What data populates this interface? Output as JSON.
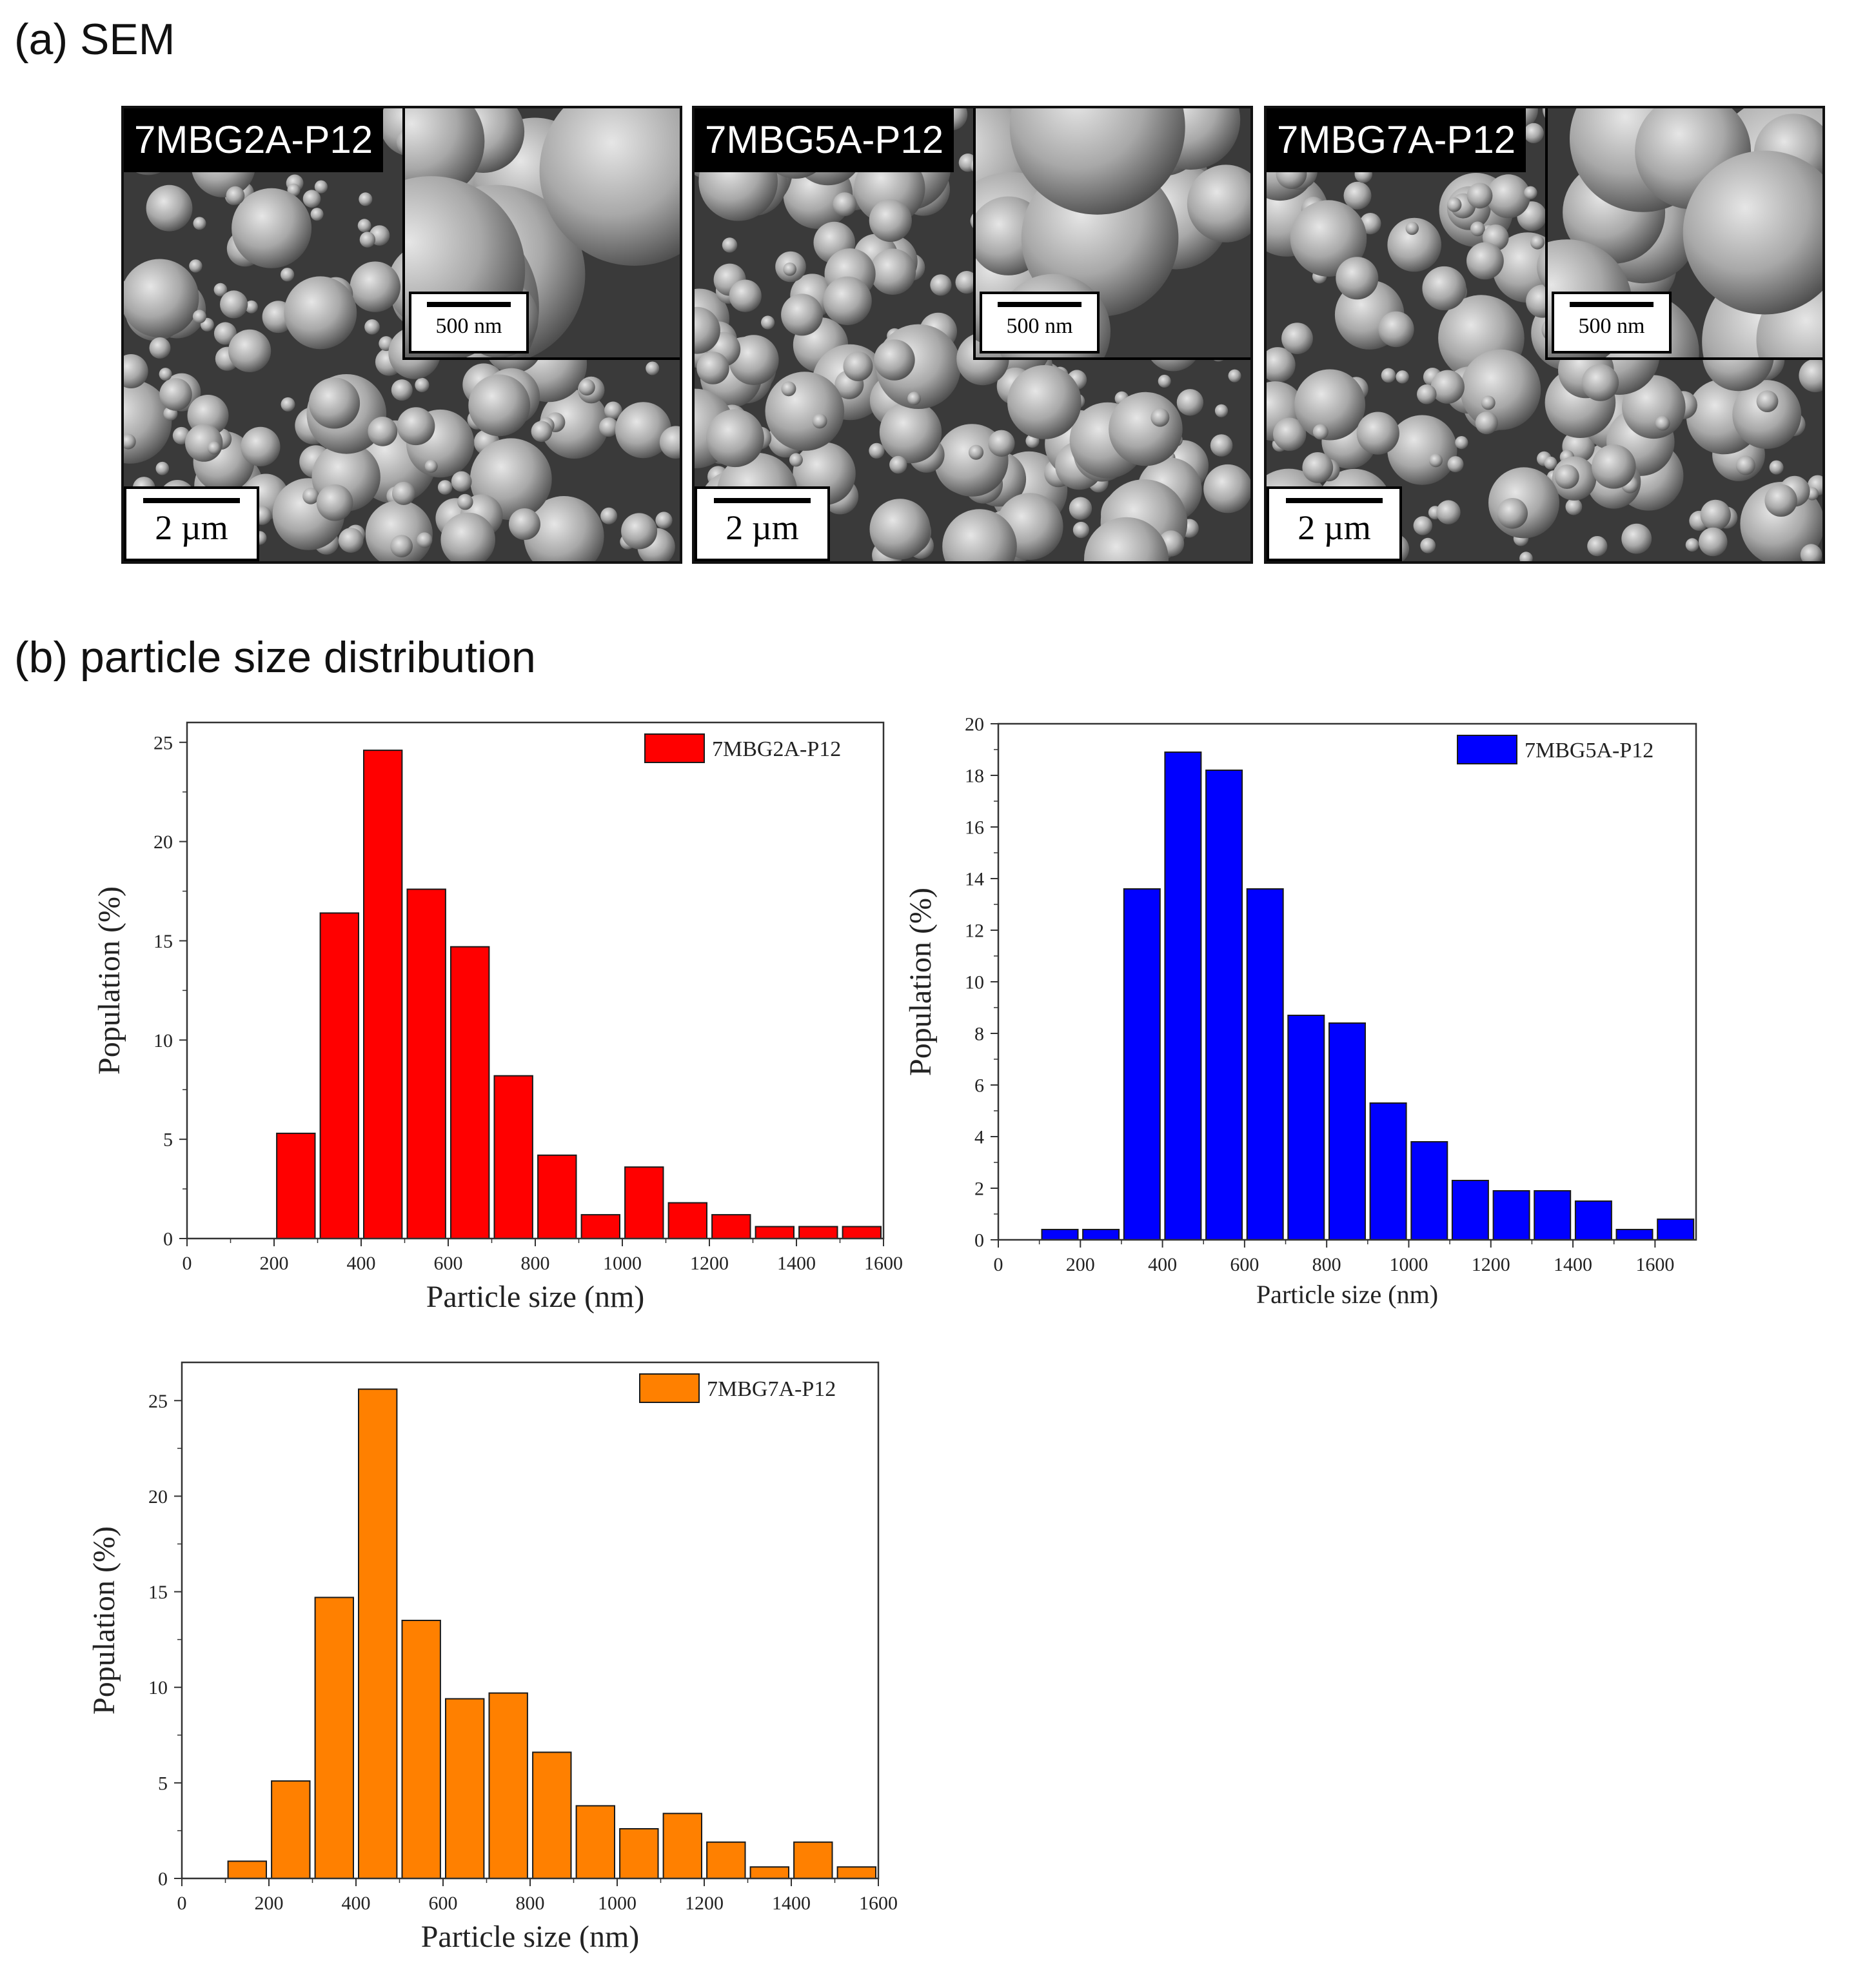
{
  "section_a_title": "(a) SEM",
  "section_b_title": "(b) particle size distribution",
  "sem_panels": [
    {
      "label": "7MBG2A-P12",
      "scale_main": "2 µm",
      "scale_inset": "500 nm"
    },
    {
      "label": "7MBG5A-P12",
      "scale_main": "2 µm",
      "scale_inset": "500 nm"
    },
    {
      "label": "7MBG7A-P12",
      "scale_main": "2 µm",
      "scale_inset": "500 nm"
    }
  ],
  "colors": {
    "red": "#ff0000",
    "blue": "#0000ff",
    "orange": "#ff8000",
    "edge": "#1a1a1a"
  },
  "chart_data": [
    {
      "type": "bar",
      "title": "",
      "xlabel": "Particle size (nm)",
      "ylabel": "Population (%)",
      "xlim": [
        0,
        1600
      ],
      "ylim": [
        0,
        26
      ],
      "x_ticks": [
        "0",
        "200",
        "400",
        "600",
        "800",
        "1000",
        "1200",
        "1400",
        "1600"
      ],
      "y_ticks": [
        "0",
        "5",
        "10",
        "15",
        "20",
        "25"
      ],
      "bin_width": 100,
      "categories": [
        250,
        350,
        450,
        550,
        650,
        750,
        850,
        950,
        1050,
        1150,
        1250,
        1350,
        1450,
        1550
      ],
      "series": [
        {
          "name": "7MBG2A-P12",
          "color": "#ff0000",
          "values": [
            5.3,
            16.4,
            24.6,
            17.6,
            14.7,
            8.2,
            4.2,
            1.2,
            3.6,
            1.8,
            1.2,
            0.6,
            0.6,
            0.6
          ]
        }
      ],
      "legend": "top-right"
    },
    {
      "type": "bar",
      "title": "",
      "xlabel": "Particle size (nm)",
      "ylabel": "Population (%)",
      "xlim": [
        0,
        1700
      ],
      "ylim": [
        0,
        20
      ],
      "x_ticks": [
        "0",
        "200",
        "400",
        "600",
        "800",
        "1000",
        "1200",
        "1400",
        "1600"
      ],
      "y_ticks": [
        "0",
        "2",
        "4",
        "6",
        "8",
        "10",
        "12",
        "14",
        "16",
        "18",
        "20"
      ],
      "bin_width": 100,
      "categories": [
        150,
        250,
        350,
        450,
        550,
        650,
        750,
        850,
        950,
        1050,
        1150,
        1250,
        1350,
        1450,
        1550,
        1650
      ],
      "series": [
        {
          "name": "7MBG5A-P12",
          "color": "#0000ff",
          "values": [
            0.4,
            0.4,
            13.6,
            18.9,
            18.2,
            13.6,
            8.7,
            8.4,
            5.3,
            3.8,
            2.3,
            1.9,
            1.9,
            1.5,
            0.4,
            0.8
          ]
        }
      ],
      "legend": "top-right"
    },
    {
      "type": "bar",
      "title": "",
      "xlabel": "Particle size (nm)",
      "ylabel": "Population (%)",
      "xlim": [
        0,
        1600
      ],
      "ylim": [
        0,
        27
      ],
      "x_ticks": [
        "0",
        "200",
        "400",
        "600",
        "800",
        "1000",
        "1200",
        "1400",
        "1600"
      ],
      "y_ticks": [
        "0",
        "5",
        "10",
        "15",
        "20",
        "25"
      ],
      "bin_width": 100,
      "categories": [
        150,
        250,
        350,
        450,
        550,
        650,
        750,
        850,
        950,
        1050,
        1150,
        1250,
        1350,
        1450,
        1550
      ],
      "series": [
        {
          "name": "7MBG7A-P12",
          "color": "#ff8000",
          "values": [
            0.9,
            5.1,
            14.7,
            25.6,
            13.5,
            9.4,
            9.7,
            6.6,
            3.8,
            2.6,
            3.4,
            1.9,
            0.6,
            1.9,
            0.6
          ]
        }
      ],
      "legend": "top-right"
    }
  ]
}
